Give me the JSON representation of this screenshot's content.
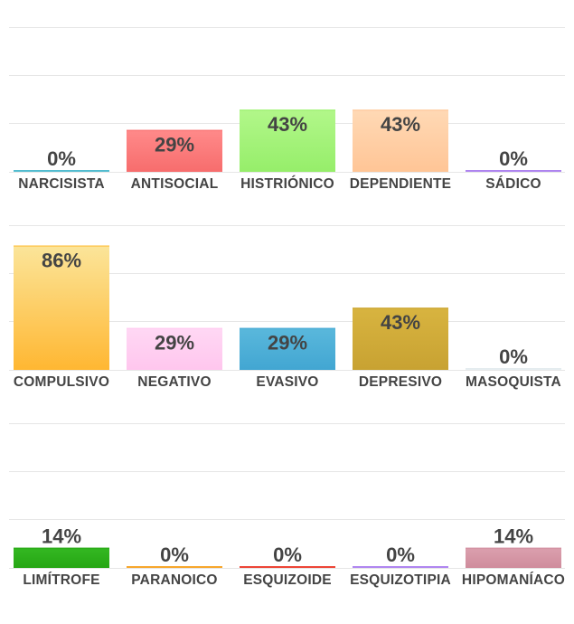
{
  "chart_data": [
    {
      "type": "bar",
      "ylim": [
        0,
        100
      ],
      "grid": true,
      "categories": [
        "NARCISISTA",
        "ANTISOCIAL",
        "HISTRIÓNICO",
        "DEPENDIENTE",
        "SÁDICO"
      ],
      "values": [
        0,
        29,
        43,
        43,
        0
      ],
      "value_labels": [
        "0%",
        "29%",
        "43%",
        "43%",
        "0%"
      ],
      "colors": [
        [
          "#5fc4d6",
          "#3aa8c0"
        ],
        [
          "#f76d6d",
          "#ff8a8a"
        ],
        [
          "#96ee6a",
          "#b2f78a"
        ],
        [
          "#ffc596",
          "#ffd9b5"
        ],
        [
          "#b48cf2",
          "#a070e8"
        ]
      ]
    },
    {
      "type": "bar",
      "ylim": [
        0,
        100
      ],
      "grid": true,
      "categories": [
        "COMPULSIVO",
        "NEGATIVO",
        "EVASIVO",
        "DEPRESIVO",
        "MASOQUISTA"
      ],
      "values": [
        86,
        29,
        29,
        43,
        0
      ],
      "value_labels": [
        "86%",
        "29%",
        "29%",
        "43%",
        "0%"
      ],
      "colors": [
        [
          "#ffb732",
          "#fbe59a"
        ],
        [
          "#ffc6ee",
          "#ffd8f4"
        ],
        [
          "#42a6d2",
          "#5ab8dc"
        ],
        [
          "#c8a232",
          "#d8b440"
        ],
        [
          "#e8f0f2",
          "#d9e4e8"
        ]
      ]
    },
    {
      "type": "bar",
      "ylim": [
        0,
        100
      ],
      "grid": true,
      "categories": [
        "LIMÍTROFE",
        "PARANOICO",
        "ESQUIZOIDE",
        "ESQUIZOTIPIA",
        "HIPOMANÍACO"
      ],
      "values": [
        14,
        0,
        0,
        0,
        14
      ],
      "value_labels": [
        "14%",
        "0%",
        "0%",
        "0%",
        "14%"
      ],
      "colors": [
        [
          "#26a614",
          "#34b822"
        ],
        [
          "#f7a830",
          "#f5a020"
        ],
        [
          "#ee4a3a",
          "#e8392c"
        ],
        [
          "#b48cf2",
          "#a070e8"
        ],
        [
          "#cf8c9c",
          "#dba0ae"
        ]
      ]
    }
  ]
}
